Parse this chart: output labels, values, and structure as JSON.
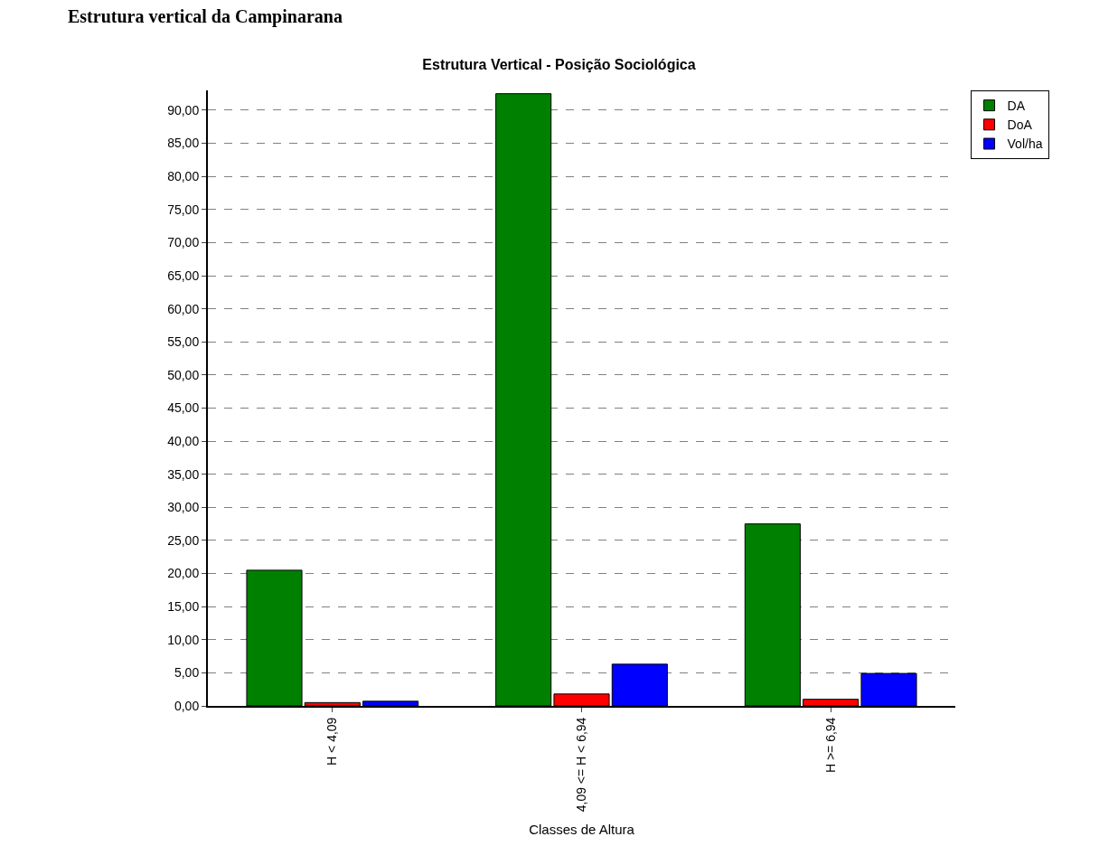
{
  "chart_data": {
    "type": "bar",
    "title": "Estrutura Vertical - Posição Sociológica",
    "xlabel": "Classes de Altura",
    "annotations": [
      "Estrutura vertical da Campinarana"
    ],
    "categories": [
      "H < 4,09",
      "4,09 <= H < 6,94",
      "H >= 6,94"
    ],
    "series": [
      {
        "name": "DA",
        "color": "#008000",
        "values": [
          20.5,
          92.5,
          27.5
        ]
      },
      {
        "name": "DoA",
        "color": "#ff0000",
        "values": [
          0.5,
          1.8,
          1.0
        ]
      },
      {
        "name": "Vol/ha",
        "color": "#0000ff",
        "values": [
          0.7,
          6.3,
          4.9
        ]
      }
    ],
    "ylim": [
      0,
      93
    ],
    "yticks": [
      {
        "value": 0,
        "label": "0,00"
      },
      {
        "value": 5,
        "label": "5,00"
      },
      {
        "value": 10,
        "label": "10,00"
      },
      {
        "value": 15,
        "label": "15,00"
      },
      {
        "value": 20,
        "label": "20,00"
      },
      {
        "value": 25,
        "label": "25,00"
      },
      {
        "value": 30,
        "label": "30,00"
      },
      {
        "value": 35,
        "label": "35,00"
      },
      {
        "value": 40,
        "label": "40,00"
      },
      {
        "value": 45,
        "label": "45,00"
      },
      {
        "value": 50,
        "label": "50,00"
      },
      {
        "value": 55,
        "label": "55,00"
      },
      {
        "value": 60,
        "label": "60,00"
      },
      {
        "value": 65,
        "label": "65,00"
      },
      {
        "value": 70,
        "label": "70,00"
      },
      {
        "value": 75,
        "label": "75,00"
      },
      {
        "value": 80,
        "label": "80,00"
      },
      {
        "value": 85,
        "label": "85,00"
      },
      {
        "value": 90,
        "label": "90,00"
      }
    ],
    "grid": "y",
    "legend": "top right"
  }
}
